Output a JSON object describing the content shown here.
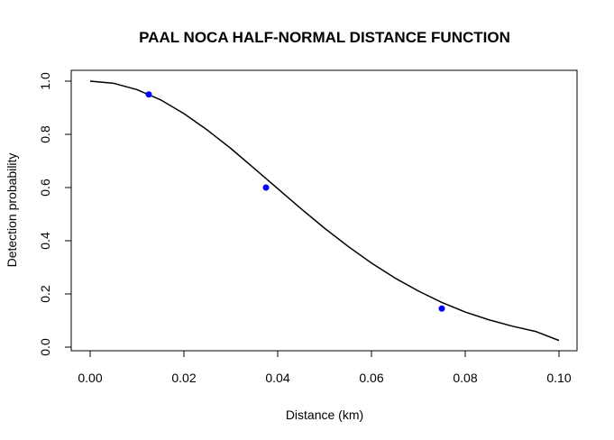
{
  "chart_data": {
    "type": "line",
    "title": "PAAL NOCA HALF-NORMAL DISTANCE FUNCTION",
    "xlabel": "Distance (km)",
    "ylabel": "Detection probability",
    "xlim": [
      0.0,
      0.1
    ],
    "ylim": [
      0.0,
      1.0
    ],
    "x_ticks": [
      "0.00",
      "0.02",
      "0.04",
      "0.06",
      "0.08",
      "0.10"
    ],
    "y_ticks": [
      "0.0",
      "0.2",
      "0.4",
      "0.6",
      "0.8",
      "1.0"
    ],
    "grid": false,
    "legend": "none",
    "series": [
      {
        "kind": "curve",
        "color": "#000000",
        "x": [
          0.0,
          0.005,
          0.01,
          0.015,
          0.02,
          0.025,
          0.03,
          0.035,
          0.04,
          0.045,
          0.05,
          0.055,
          0.06,
          0.065,
          0.07,
          0.075,
          0.08,
          0.085,
          0.09,
          0.095,
          0.1
        ],
        "y": [
          1.0,
          0.992,
          0.968,
          0.93,
          0.878,
          0.816,
          0.747,
          0.672,
          0.596,
          0.52,
          0.447,
          0.379,
          0.316,
          0.26,
          0.211,
          0.168,
          0.132,
          0.103,
          0.079,
          0.059,
          0.025
        ]
      },
      {
        "kind": "points",
        "color": "#0000ff",
        "x": [
          0.0125,
          0.0375,
          0.075
        ],
        "y": [
          0.95,
          0.6,
          0.145
        ]
      }
    ]
  }
}
